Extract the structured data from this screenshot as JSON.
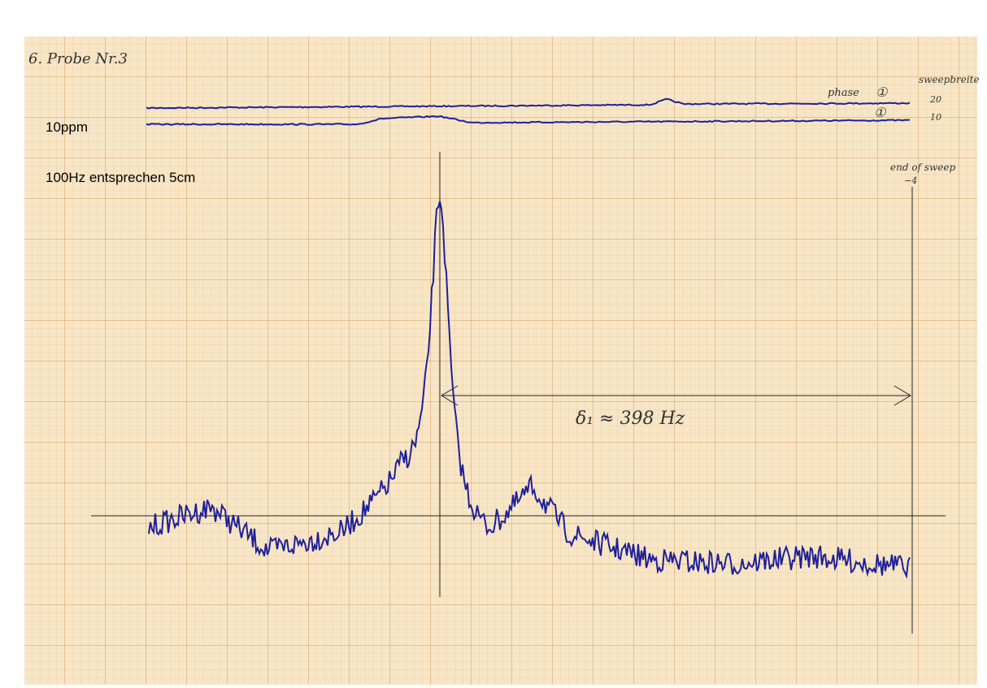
{
  "title": "6. Probe Nr.3",
  "trace_labels": {
    "phase": "phase",
    "phase_mark": "①",
    "second_mark": "①",
    "sweep_label": "sweepbreite",
    "sweep_values": [
      "20",
      "10"
    ]
  },
  "labels": {
    "ppm": "10ppm",
    "scale": "100Hz entsprechen 5cm",
    "end": "end of sweep",
    "end_value": "−4",
    "shift": "δ₁ ≈ 398 Hz"
  }
}
